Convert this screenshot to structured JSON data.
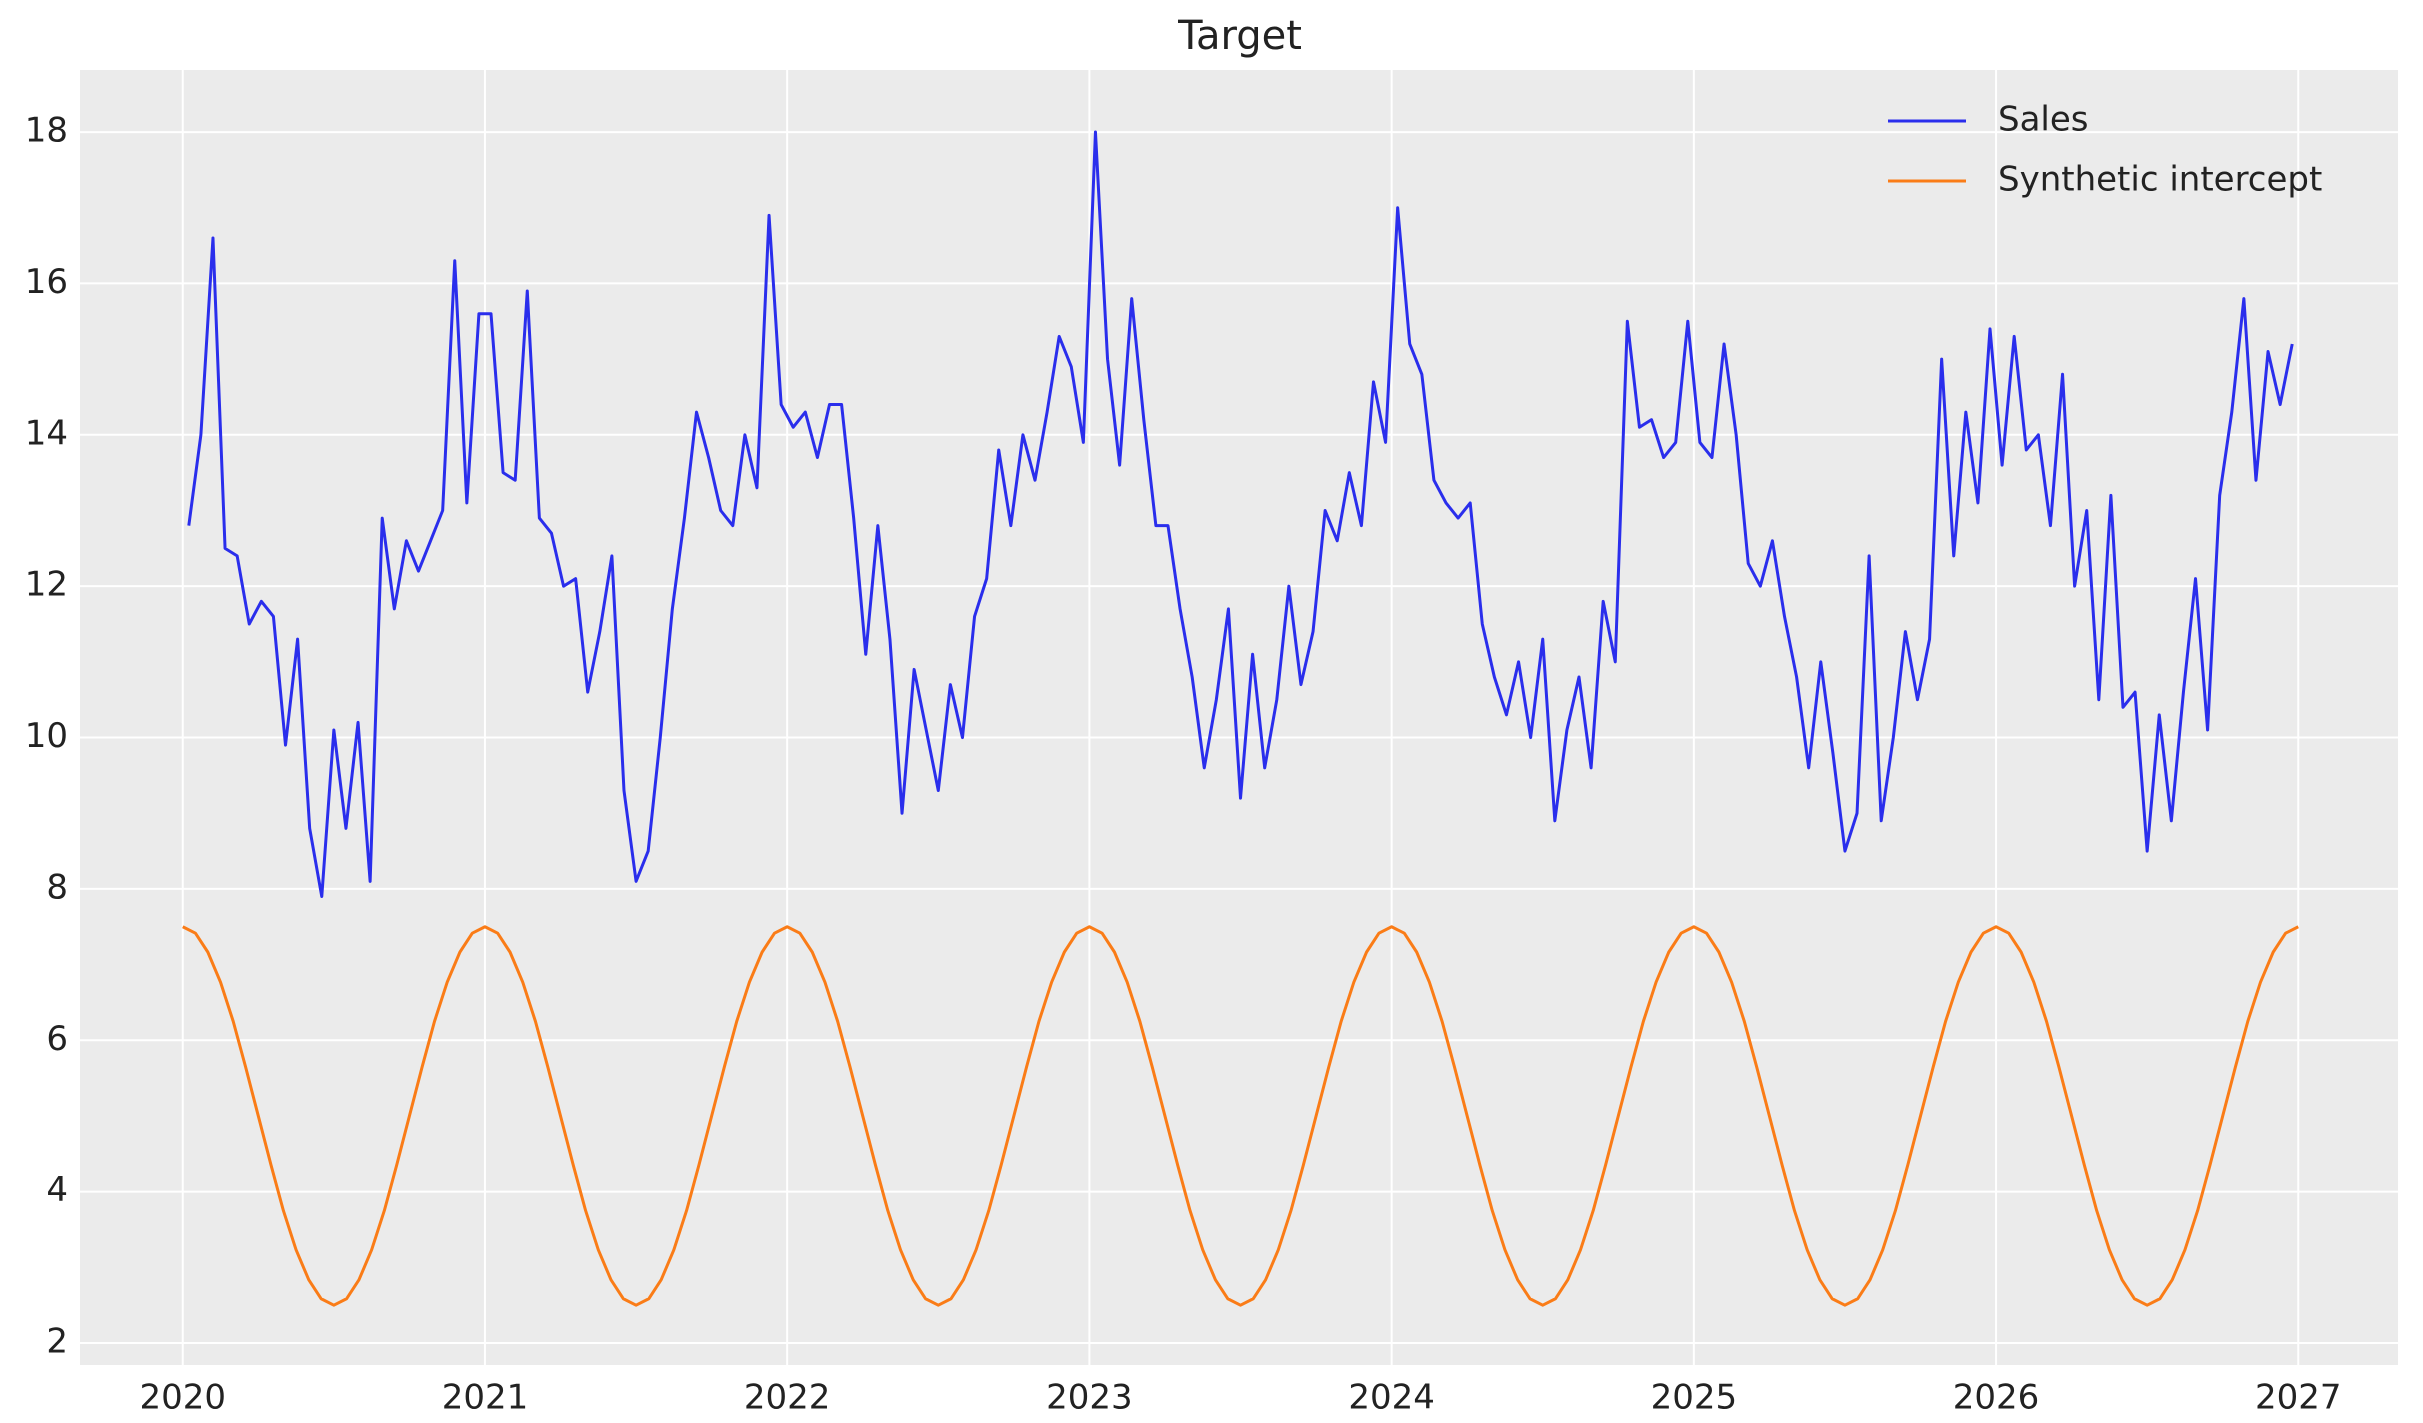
{
  "chart_data": {
    "type": "line",
    "title": "Target",
    "grid": true,
    "legend": "upper right",
    "xlim": [
      2019.66,
      2027.33
    ],
    "ylim": [
      1.71,
      18.82
    ],
    "xticks": [
      2020,
      2021,
      2022,
      2023,
      2024,
      2025,
      2026,
      2027
    ],
    "yticks": [
      2,
      4,
      6,
      8,
      10,
      12,
      14,
      16,
      18
    ],
    "series": [
      {
        "name": "Sales",
        "color": "#2a2eec",
        "x": [
          2020.02,
          2020.06,
          2020.1,
          2020.14,
          2020.18,
          2020.22,
          2020.26,
          2020.3,
          2020.34,
          2020.38,
          2020.42,
          2020.46,
          2020.5,
          2020.54,
          2020.58,
          2020.62,
          2020.66,
          2020.7,
          2020.74,
          2020.78,
          2020.82,
          2020.86,
          2020.9,
          2020.94,
          2020.98,
          2021.02,
          2021.06,
          2021.1,
          2021.14,
          2021.18,
          2021.22,
          2021.26,
          2021.3,
          2021.34,
          2021.38,
          2021.42,
          2021.46,
          2021.5,
          2021.54,
          2021.58,
          2021.62,
          2021.66,
          2021.7,
          2021.74,
          2021.78,
          2021.82,
          2021.86,
          2021.9,
          2021.94,
          2021.98,
          2022.02,
          2022.06,
          2022.1,
          2022.14,
          2022.18,
          2022.22,
          2022.26,
          2022.3,
          2022.34,
          2022.38,
          2022.42,
          2022.46,
          2022.5,
          2022.54,
          2022.58,
          2022.62,
          2022.66,
          2022.7,
          2022.74,
          2022.78,
          2022.82,
          2022.86,
          2022.9,
          2022.94,
          2022.98,
          2023.02,
          2023.06,
          2023.1,
          2023.14,
          2023.18,
          2023.22,
          2023.26,
          2023.3,
          2023.34,
          2023.38,
          2023.42,
          2023.46,
          2023.5,
          2023.54,
          2023.58,
          2023.62,
          2023.66,
          2023.7,
          2023.74,
          2023.78,
          2023.82,
          2023.86,
          2023.9,
          2023.94,
          2023.98,
          2024.02,
          2024.06,
          2024.1,
          2024.14,
          2024.18,
          2024.22,
          2024.26,
          2024.3,
          2024.34,
          2024.38,
          2024.42,
          2024.46,
          2024.5,
          2024.54,
          2024.58,
          2024.62,
          2024.66,
          2024.7,
          2024.74,
          2024.78,
          2024.82,
          2024.86,
          2024.9,
          2024.94,
          2024.98,
          2025.02,
          2025.06,
          2025.1,
          2025.14,
          2025.18,
          2025.22,
          2025.26,
          2025.3,
          2025.34,
          2025.38,
          2025.42,
          2025.46,
          2025.5,
          2025.54,
          2025.58,
          2025.62,
          2025.66,
          2025.7,
          2025.74,
          2025.78,
          2025.82,
          2025.86,
          2025.9,
          2025.94,
          2025.98,
          2026.02,
          2026.06,
          2026.1,
          2026.14,
          2026.18,
          2026.22,
          2026.26,
          2026.3,
          2026.34,
          2026.38,
          2026.42,
          2026.46,
          2026.5,
          2026.54,
          2026.58,
          2026.62,
          2026.66,
          2026.7,
          2026.74,
          2026.78,
          2026.82,
          2026.86,
          2026.9,
          2026.94,
          2026.98
        ],
        "values": [
          12.8,
          14.0,
          16.6,
          12.5,
          12.4,
          11.5,
          11.8,
          11.6,
          9.9,
          11.3,
          8.8,
          7.9,
          10.1,
          8.8,
          10.2,
          8.1,
          12.9,
          11.7,
          12.6,
          12.2,
          12.6,
          13.0,
          16.3,
          13.1,
          15.6,
          15.6,
          13.5,
          13.4,
          15.9,
          12.9,
          12.7,
          12.0,
          12.1,
          10.6,
          11.4,
          12.4,
          9.3,
          8.1,
          8.5,
          10.0,
          11.7,
          12.9,
          14.3,
          13.7,
          13.0,
          12.8,
          14.0,
          13.3,
          16.9,
          14.4,
          14.1,
          14.3,
          13.7,
          14.4,
          14.4,
          12.9,
          11.1,
          12.8,
          11.3,
          9.0,
          10.9,
          10.1,
          9.3,
          10.7,
          10.0,
          11.6,
          12.1,
          13.8,
          12.8,
          14.0,
          13.4,
          14.3,
          15.3,
          14.9,
          13.9,
          18.0,
          15.0,
          13.6,
          15.8,
          14.2,
          12.8,
          12.8,
          11.7,
          10.8,
          9.6,
          10.5,
          11.7,
          9.2,
          11.1,
          9.6,
          10.5,
          12.0,
          10.7,
          11.4,
          13.0,
          12.6,
          13.5,
          12.8,
          14.7,
          13.9,
          17.0,
          15.2,
          14.8,
          13.4,
          13.1,
          12.9,
          13.1,
          11.5,
          10.8,
          10.3,
          11.0,
          10.0,
          11.3,
          8.9,
          10.1,
          10.8,
          9.6,
          11.8,
          11.0,
          15.5,
          14.1,
          14.2,
          13.7,
          13.9,
          15.5,
          13.9,
          13.7,
          15.2,
          14.0,
          12.3,
          12.0,
          12.6,
          11.6,
          10.8,
          9.6,
          11.0,
          9.8,
          8.5,
          9.0,
          12.4,
          8.9,
          10.0,
          11.4,
          10.5,
          11.3,
          15.0,
          12.4,
          14.3,
          13.1,
          15.4,
          13.6,
          15.3,
          13.8,
          14.0,
          12.8,
          14.8,
          12.0,
          13.0,
          10.5,
          13.2,
          10.4,
          10.6,
          8.5,
          10.3,
          8.9,
          10.6,
          12.1,
          10.1,
          13.2,
          14.3,
          15.8,
          13.4,
          15.1,
          14.4,
          15.2
        ]
      },
      {
        "name": "Synthetic intercept",
        "color": "#fa7c17",
        "x": [
          2020,
          2020.042,
          2020.083,
          2020.125,
          2020.167,
          2020.208,
          2020.25,
          2020.292,
          2020.333,
          2020.375,
          2020.417,
          2020.458,
          2020.5,
          2020.542,
          2020.583,
          2020.625,
          2020.667,
          2020.708,
          2020.75,
          2020.792,
          2020.833,
          2020.875,
          2020.917,
          2020.958,
          2021,
          2021.042,
          2021.083,
          2021.125,
          2021.167,
          2021.208,
          2021.25,
          2021.292,
          2021.333,
          2021.375,
          2021.417,
          2021.458,
          2021.5,
          2021.542,
          2021.583,
          2021.625,
          2021.667,
          2021.708,
          2021.75,
          2021.792,
          2021.833,
          2021.875,
          2021.917,
          2021.958,
          2022,
          2022.042,
          2022.083,
          2022.125,
          2022.167,
          2022.208,
          2022.25,
          2022.292,
          2022.333,
          2022.375,
          2022.417,
          2022.458,
          2022.5,
          2022.542,
          2022.583,
          2022.625,
          2022.667,
          2022.708,
          2022.75,
          2022.792,
          2022.833,
          2022.875,
          2022.917,
          2022.958,
          2023,
          2023.042,
          2023.083,
          2023.125,
          2023.167,
          2023.208,
          2023.25,
          2023.292,
          2023.333,
          2023.375,
          2023.417,
          2023.458,
          2023.5,
          2023.542,
          2023.583,
          2023.625,
          2023.667,
          2023.708,
          2023.75,
          2023.792,
          2023.833,
          2023.875,
          2023.917,
          2023.958,
          2024,
          2024.042,
          2024.083,
          2024.125,
          2024.167,
          2024.208,
          2024.25,
          2024.292,
          2024.333,
          2024.375,
          2024.417,
          2024.458,
          2024.5,
          2024.542,
          2024.583,
          2024.625,
          2024.667,
          2024.708,
          2024.75,
          2024.792,
          2024.833,
          2024.875,
          2024.917,
          2024.958,
          2025,
          2025.042,
          2025.083,
          2025.125,
          2025.167,
          2025.208,
          2025.25,
          2025.292,
          2025.333,
          2025.375,
          2025.417,
          2025.458,
          2025.5,
          2025.542,
          2025.583,
          2025.625,
          2025.667,
          2025.708,
          2025.75,
          2025.792,
          2025.833,
          2025.875,
          2025.917,
          2025.958,
          2026,
          2026.042,
          2026.083,
          2026.125,
          2026.167,
          2026.208,
          2026.25,
          2026.292,
          2026.333,
          2026.375,
          2026.417,
          2026.458,
          2026.5,
          2026.542,
          2026.583,
          2026.625,
          2026.667,
          2026.708,
          2026.75,
          2026.792,
          2026.833,
          2026.875,
          2026.917,
          2026.958,
          2027
        ],
        "values": [
          7.5,
          7.415,
          7.165,
          6.768,
          6.25,
          5.647,
          5,
          4.353,
          3.75,
          3.232,
          2.835,
          2.585,
          2.5,
          2.585,
          2.835,
          3.232,
          3.75,
          4.353,
          5,
          5.647,
          6.25,
          6.768,
          7.165,
          7.415,
          7.5,
          7.415,
          7.165,
          6.768,
          6.25,
          5.647,
          5,
          4.353,
          3.75,
          3.232,
          2.835,
          2.585,
          2.5,
          2.585,
          2.835,
          3.232,
          3.75,
          4.353,
          5,
          5.647,
          6.25,
          6.768,
          7.165,
          7.415,
          7.5,
          7.415,
          7.165,
          6.768,
          6.25,
          5.647,
          5,
          4.353,
          3.75,
          3.232,
          2.835,
          2.585,
          2.5,
          2.585,
          2.835,
          3.232,
          3.75,
          4.353,
          5,
          5.647,
          6.25,
          6.768,
          7.165,
          7.415,
          7.5,
          7.415,
          7.165,
          6.768,
          6.25,
          5.647,
          5,
          4.353,
          3.75,
          3.232,
          2.835,
          2.585,
          2.5,
          2.585,
          2.835,
          3.232,
          3.75,
          4.353,
          5,
          5.647,
          6.25,
          6.768,
          7.165,
          7.415,
          7.5,
          7.415,
          7.165,
          6.768,
          6.25,
          5.647,
          5,
          4.353,
          3.75,
          3.232,
          2.835,
          2.585,
          2.5,
          2.585,
          2.835,
          3.232,
          3.75,
          4.353,
          5,
          5.647,
          6.25,
          6.768,
          7.165,
          7.415,
          7.5,
          7.415,
          7.165,
          6.768,
          6.25,
          5.647,
          5,
          4.353,
          3.75,
          3.232,
          2.835,
          2.585,
          2.5,
          2.585,
          2.835,
          3.232,
          3.75,
          4.353,
          5,
          5.647,
          6.25,
          6.768,
          7.165,
          7.415,
          7.5,
          7.415,
          7.165,
          6.768,
          6.25,
          5.647,
          5,
          4.353,
          3.75,
          3.232,
          2.835,
          2.585,
          2.5,
          2.585,
          2.835,
          3.232,
          3.75,
          4.353,
          5,
          5.647,
          6.25,
          6.768,
          7.165,
          7.415,
          7.5
        ]
      }
    ]
  }
}
